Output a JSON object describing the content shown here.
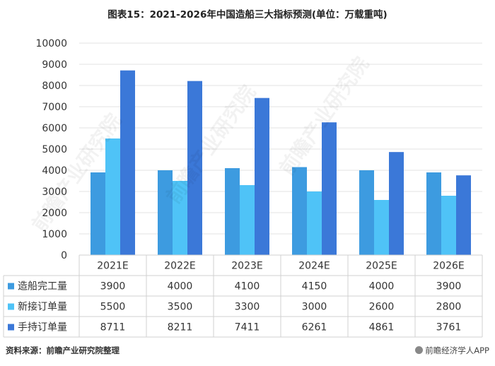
{
  "title": "图表15：2021-2026年中国造船三大指标预测(单位：万载重吨)",
  "source": "资料来源：前瞻产业研究院整理",
  "brand": "前瞻经济学人APP",
  "watermark_text": "前瞻产业研究院",
  "colors": {
    "completed": "#3d9be0",
    "new_orders": "#4fc3f7",
    "backlog": "#3b78d8",
    "grid": "#e3e3e3",
    "table_border": "#d0d0d0"
  },
  "chart_data": {
    "type": "bar",
    "categories": [
      "2021E",
      "2022E",
      "2023E",
      "2024E",
      "2025E",
      "2026E"
    ],
    "series": [
      {
        "name": "造船完工量",
        "values": [
          3900,
          4000,
          4100,
          4150,
          4000,
          3900
        ]
      },
      {
        "name": "新接订单量",
        "values": [
          5500,
          3500,
          3300,
          3000,
          2600,
          2800
        ]
      },
      {
        "name": "手持订单量",
        "values": [
          8711,
          8211,
          7411,
          6261,
          4861,
          3761
        ]
      }
    ],
    "ylim": [
      0,
      10000
    ],
    "yticks": [
      0,
      1000,
      2000,
      3000,
      4000,
      5000,
      6000,
      7000,
      8000,
      9000,
      10000
    ],
    "grid": true,
    "legend": "data-table"
  }
}
